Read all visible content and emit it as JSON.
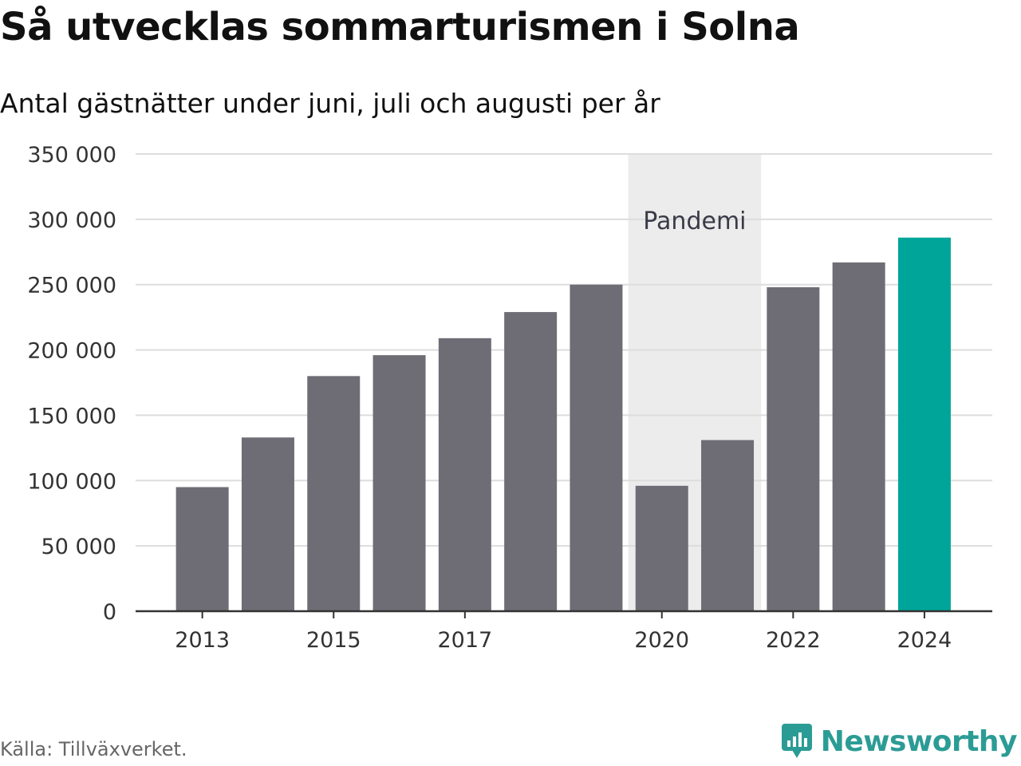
{
  "title": "Så utvecklas sommarturismen i Solna",
  "subtitle": "Antal gästnätter under juni, juli och augusti per år",
  "source": "Källa: Tillväxverket.",
  "brand": {
    "name": "Newsworthy",
    "icon": "newsworthy-logo-icon",
    "color": "#2b9c95"
  },
  "colors": {
    "bar": "#6e6d75",
    "highlight": "#00a59a",
    "band": "#ececec",
    "grid": "#dddddd",
    "axis": "#333333"
  },
  "chart_data": {
    "type": "bar",
    "categories": [
      "2013",
      "2014",
      "2015",
      "2016",
      "2017",
      "2018",
      "2019",
      "2020",
      "2021",
      "2022",
      "2023",
      "2024"
    ],
    "values": [
      95000,
      133000,
      180000,
      196000,
      209000,
      229000,
      250000,
      96000,
      131000,
      248000,
      267000,
      286000
    ],
    "x_tick_labels": [
      "2013",
      "2015",
      "2017",
      "2020",
      "2022",
      "2024"
    ],
    "y_ticks": [
      0,
      50000,
      100000,
      150000,
      200000,
      250000,
      300000,
      350000
    ],
    "y_tick_labels": [
      "0",
      "50 000",
      "100 000",
      "150 000",
      "200 000",
      "250 000",
      "300 000",
      "350 000"
    ],
    "ylim": [
      0,
      350000
    ],
    "highlight_category": "2024",
    "annotation": {
      "label": "Pandemi",
      "from": "2020",
      "to": "2021"
    },
    "grid": true,
    "legend": "none"
  }
}
